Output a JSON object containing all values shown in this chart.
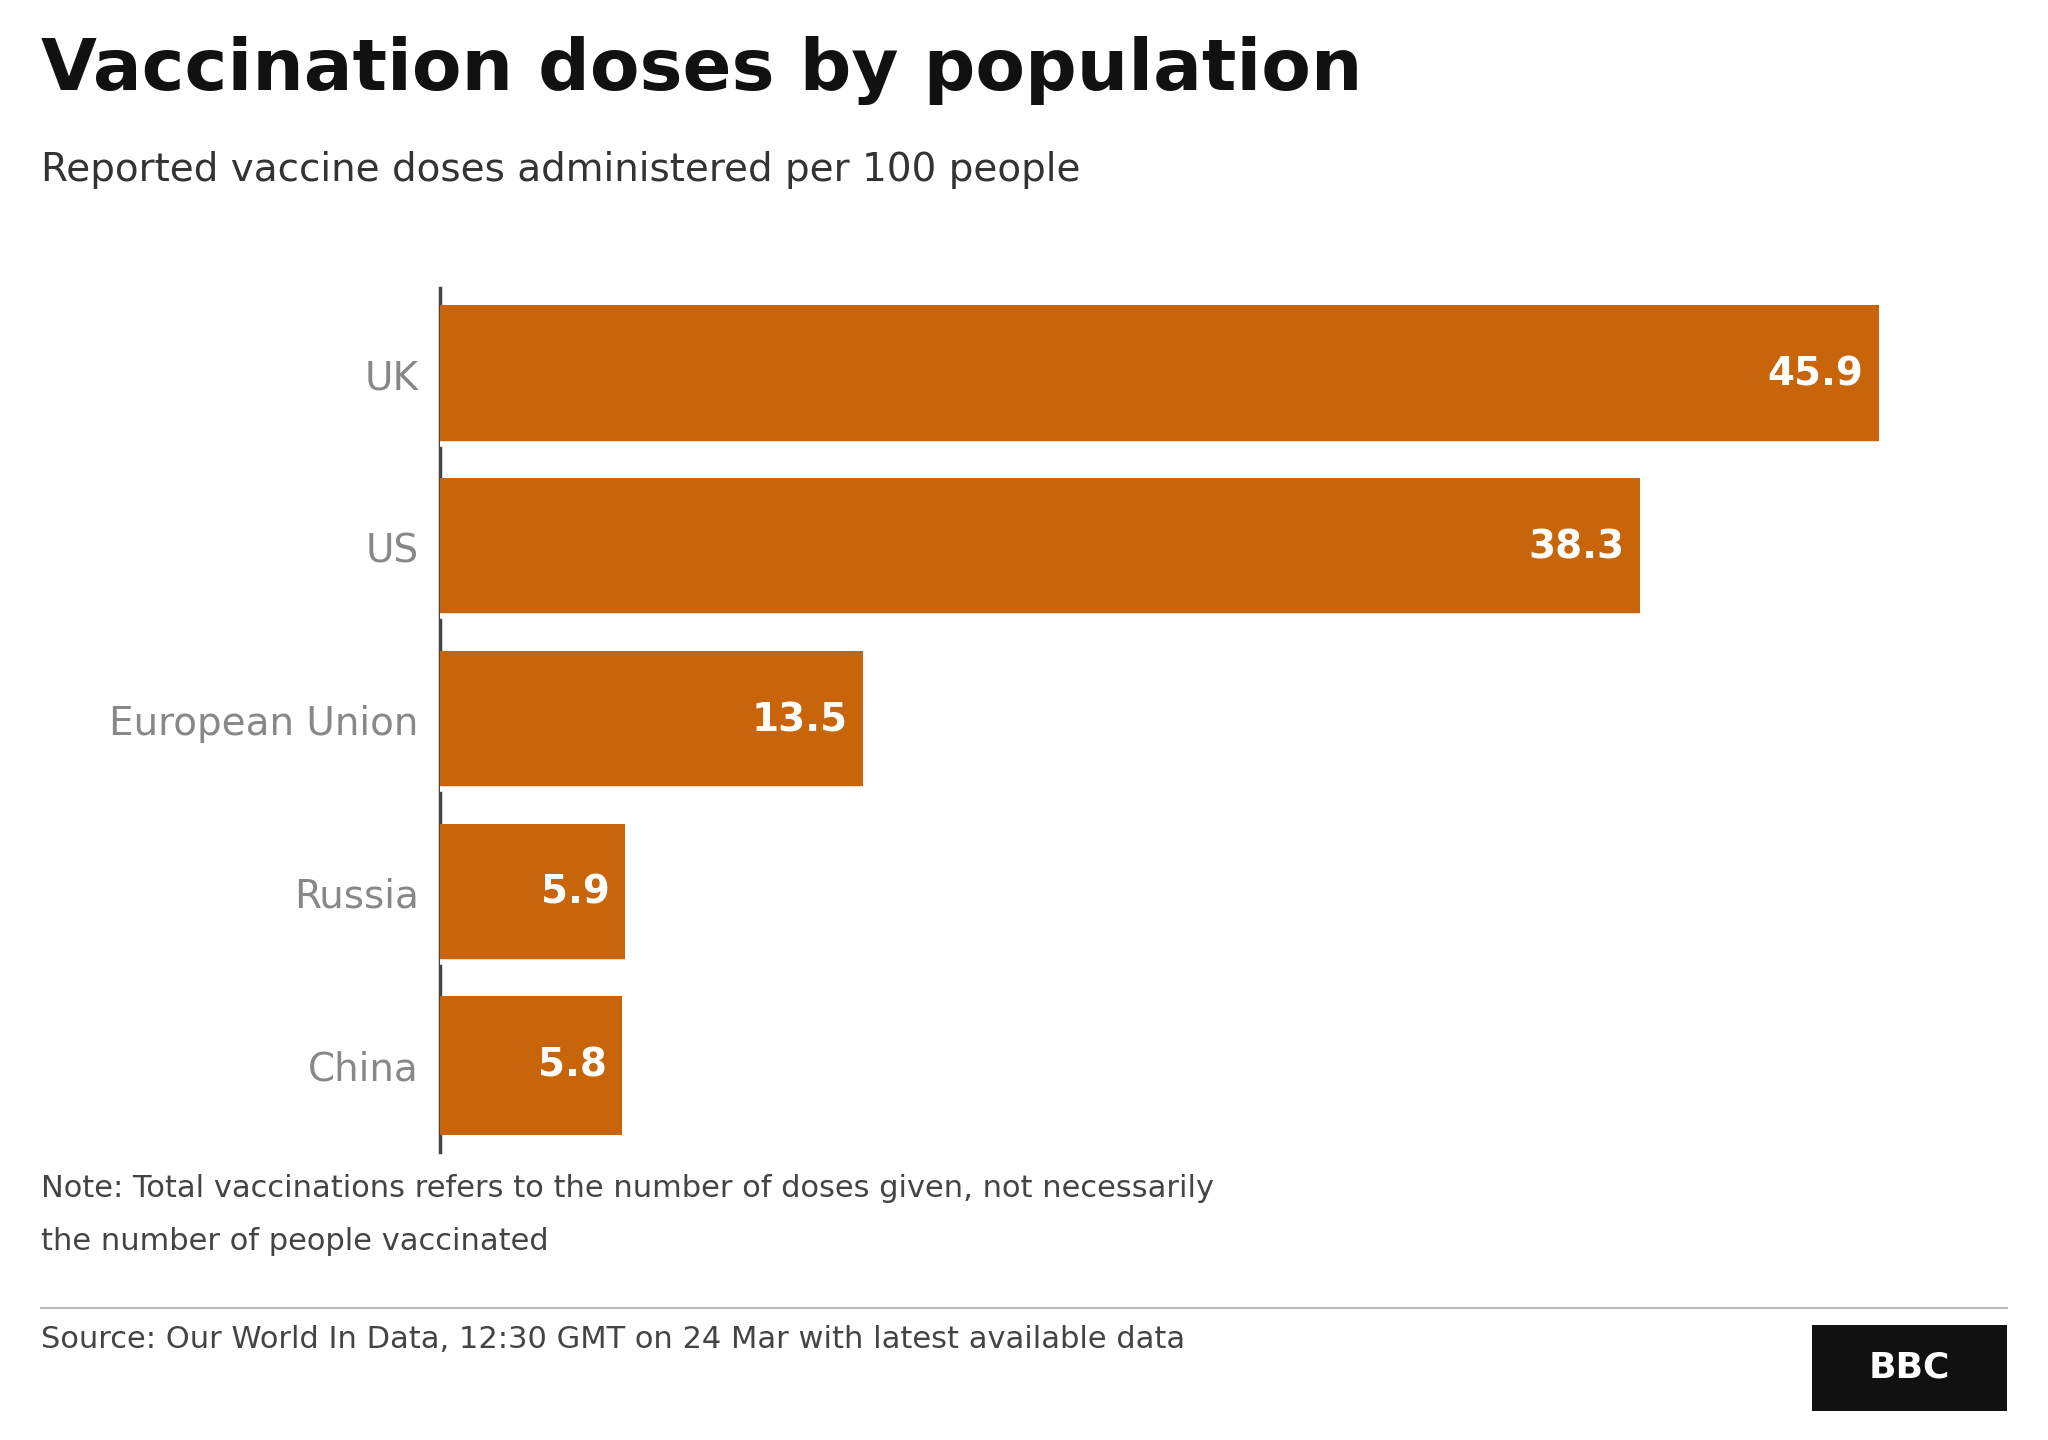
{
  "title": "Vaccination doses by population",
  "subtitle": "Reported vaccine doses administered per 100 people",
  "categories": [
    "UK",
    "US",
    "European Union",
    "Russia",
    "China"
  ],
  "values": [
    45.9,
    38.3,
    13.5,
    5.9,
    5.8
  ],
  "bar_color": "#C8650A",
  "label_color_inside": "#FFFFFF",
  "category_label_color": "#888888",
  "bg_color": "#FFFFFF",
  "note_line1": "Note: Total vaccinations refers to the number of doses given, not necessarily",
  "note_line2": "the number of people vaccinated",
  "source_text": "Source: Our World In Data, 12:30 GMT on 24 Mar with latest available data",
  "title_fontsize": 52,
  "subtitle_fontsize": 28,
  "ylabel_fontsize": 28,
  "bar_label_fontsize": 28,
  "note_fontsize": 22,
  "source_fontsize": 22,
  "xlim": [
    0,
    50
  ]
}
